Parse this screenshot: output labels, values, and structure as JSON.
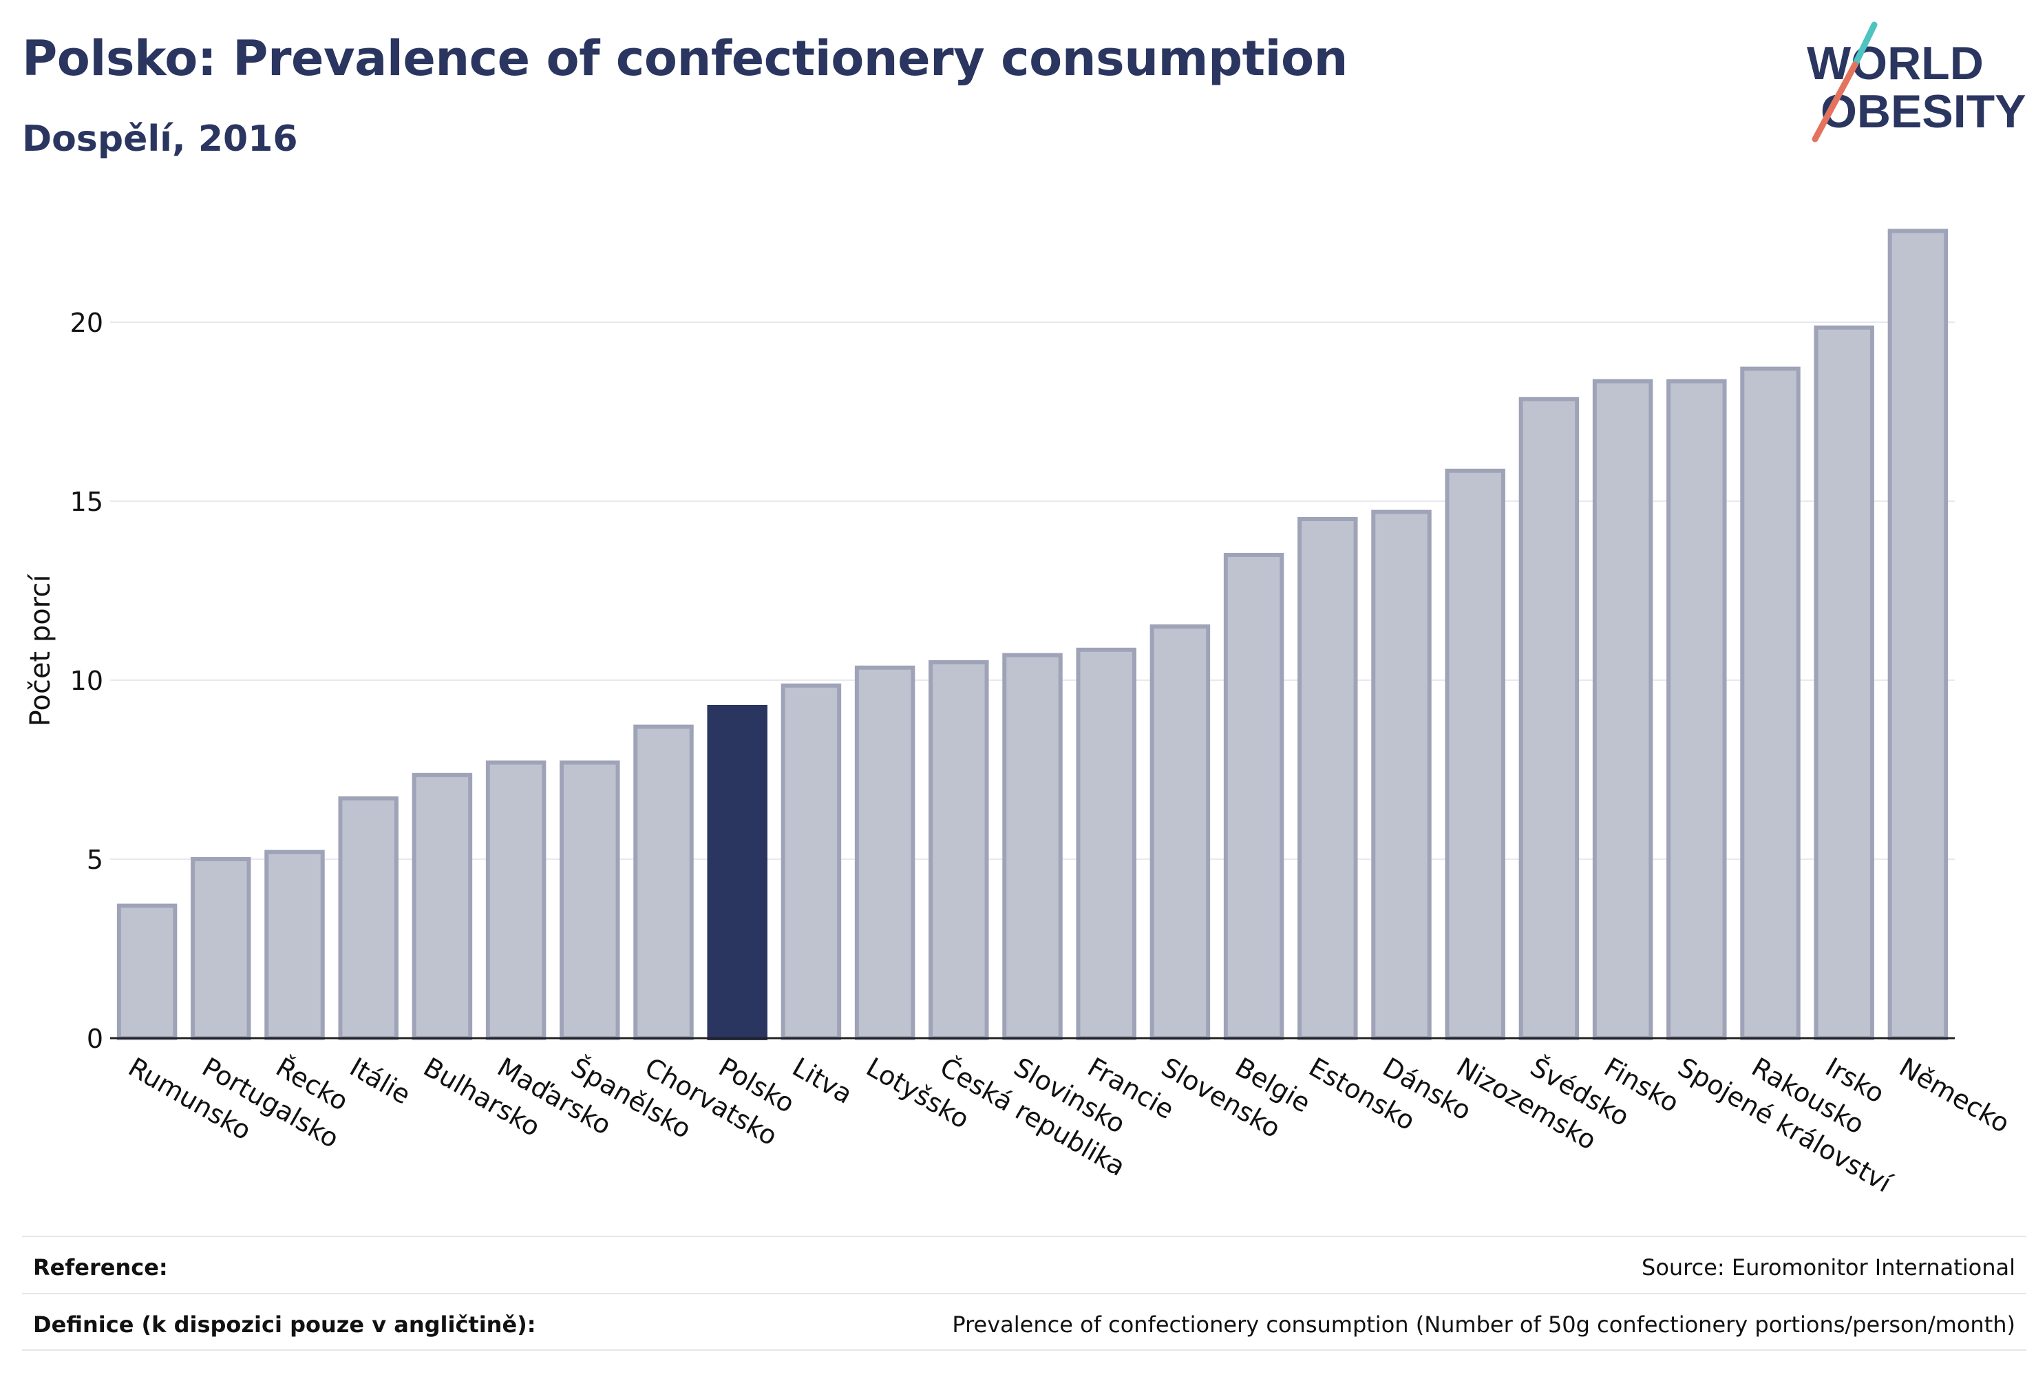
{
  "header": {
    "title": "Polsko: Prevalence of confectionery consumption",
    "subtitle": "Dospělí, 2016"
  },
  "logo": {
    "line1": "WORLD",
    "line2": "OBESITY"
  },
  "chart_data": {
    "type": "bar",
    "ylabel": "Počet porcí",
    "ylim": [
      0,
      23
    ],
    "yticks": [
      0,
      5,
      10,
      15,
      20
    ],
    "grid": true,
    "highlight": "Polsko",
    "categories": [
      "Rumunsko",
      "Portugalsko",
      "Řecko",
      "Itálie",
      "Bulharsko",
      "Maďarsko",
      "Španělsko",
      "Chorvatsko",
      "Polsko",
      "Litva",
      "Lotyšsko",
      "Česká republika",
      "Slovinsko",
      "Francie",
      "Slovensko",
      "Belgie",
      "Estonsko",
      "Dánsko",
      "Nizozemsko",
      "Švédsko",
      "Finsko",
      "Spojené království",
      "Rakousko",
      "Irsko",
      "Německo"
    ],
    "values": [
      3.7,
      5.0,
      5.2,
      6.7,
      7.35,
      7.7,
      7.7,
      8.7,
      9.25,
      9.85,
      10.35,
      10.5,
      10.7,
      10.85,
      11.5,
      13.5,
      14.5,
      14.7,
      15.85,
      17.85,
      18.35,
      18.35,
      18.7,
      19.85,
      22.55
    ]
  },
  "colors": {
    "highlight_bar": "#2a3560",
    "bar_fill": "#bfc2cf",
    "bar_stroke": "#9fa3b8",
    "text": "#2a3560",
    "logo_teal": "#4ec3c2",
    "logo_coral": "#e4735e"
  },
  "footer": {
    "reference_label": "Reference:",
    "reference_value": "Source: Euromonitor International",
    "definition_label": "Definice (k dispozici pouze v angličtině):",
    "definition_value": "Prevalence of confectionery consumption (Number of 50g confectionery portions/person/month)"
  }
}
